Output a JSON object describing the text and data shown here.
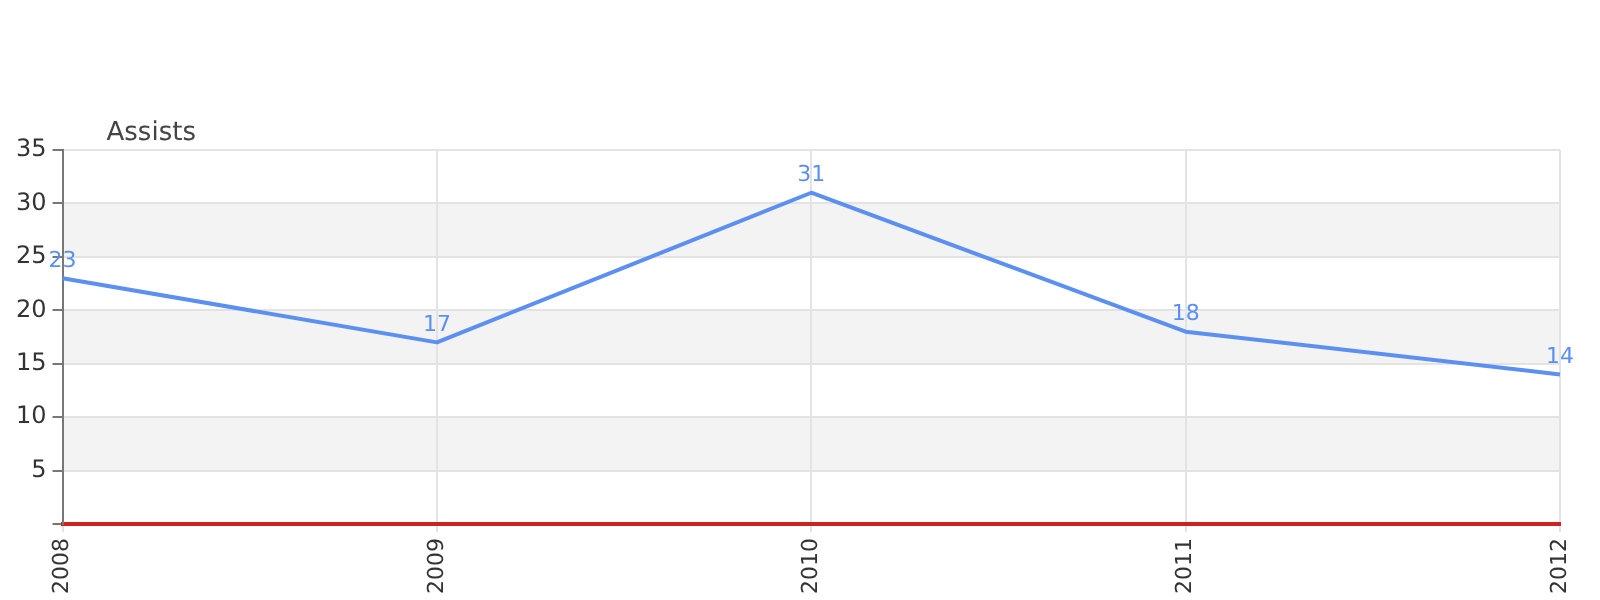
{
  "chart_data": {
    "type": "line",
    "ylabel": "Assists",
    "categories": [
      "2008",
      "2009",
      "2010",
      "2011",
      "2012"
    ],
    "series": [
      {
        "color": "#5b8ff0",
        "values": [
          23,
          17,
          31,
          18,
          14
        ]
      }
    ],
    "ylim": [
      0,
      35
    ],
    "yticks": [
      {
        "value": 0,
        "label": null
      },
      5,
      10,
      15,
      20,
      25,
      30,
      35
    ],
    "grid": true,
    "legend": false,
    "marker": "none",
    "line_style": "solid",
    "data_labels": true
  }
}
